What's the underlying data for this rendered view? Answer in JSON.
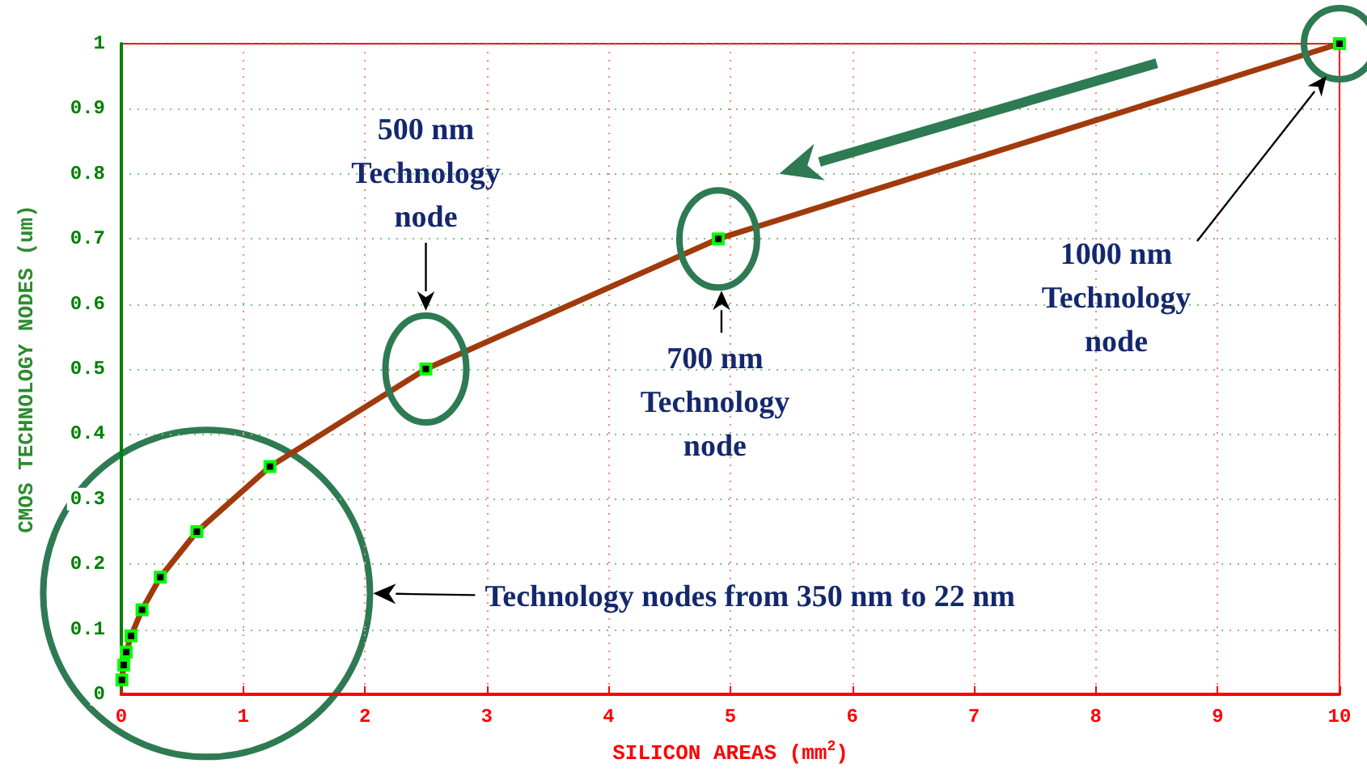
{
  "chart_data": {
    "type": "line",
    "xlabel": "SILICON AREAS (mm$^{2}$)",
    "ylabel": "CMOS TECHNOLOGY NODES (um)",
    "x": [
      0.005,
      0.02,
      0.04,
      0.08,
      0.17,
      0.32,
      0.62,
      1.22,
      2.5,
      4.9,
      10
    ],
    "series": [
      {
        "color": "#a03a0c",
        "values": [
          0.022,
          0.045,
          0.065,
          0.09,
          0.13,
          0.18,
          0.25,
          0.35,
          0.5,
          0.7,
          1
        ]
      }
    ],
    "xlim": [
      0,
      10
    ],
    "ylim": [
      0,
      1
    ],
    "xticks": [
      0,
      1,
      2,
      3,
      4,
      5,
      6,
      7,
      8,
      9,
      10
    ],
    "yticks": [
      0,
      0.1,
      0.2,
      0.3,
      0.4,
      0.5,
      0.6,
      0.7,
      0.8,
      0.9,
      1
    ],
    "grid": true,
    "marker": "square",
    "line_style": "solid",
    "annotations": [
      "500 nm\nTechnology\nnode",
      "700 nm\nTechnology\nnode",
      "1000 nm\nTechnology\nnode",
      "Technology nodes from 350 nm to 22 nm"
    ]
  }
}
